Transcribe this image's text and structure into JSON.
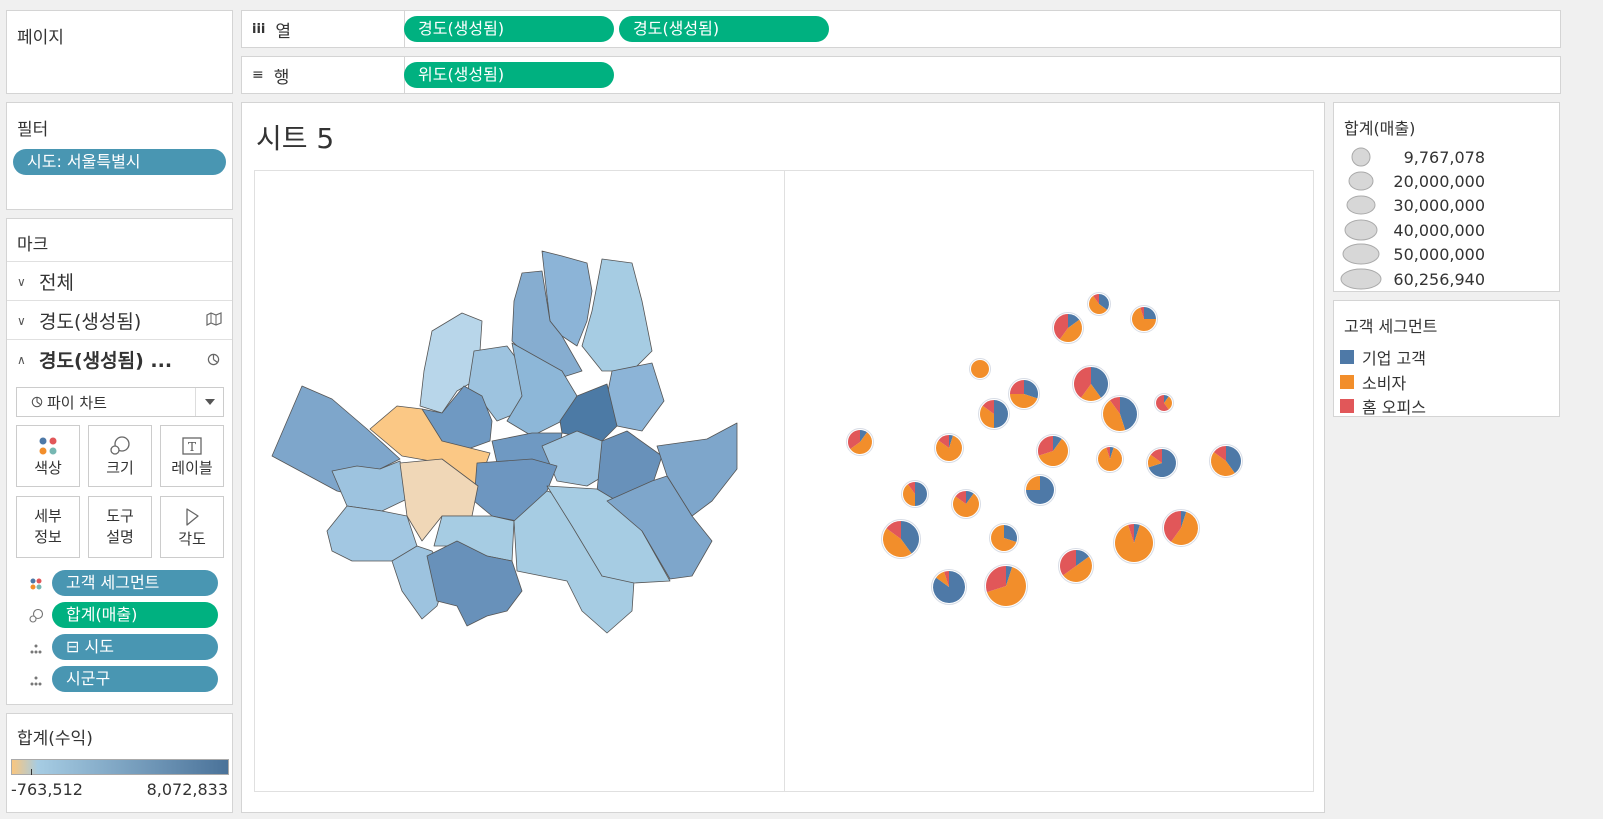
{
  "pages_card": {
    "title": "페이지"
  },
  "columns_shelf": {
    "icon": "iii",
    "label": "열",
    "pills": [
      "경도(생성됨)",
      "경도(생성됨)"
    ]
  },
  "rows_shelf": {
    "icon": "≡",
    "label": "행",
    "pills": [
      "위도(생성됨)"
    ]
  },
  "filters_card": {
    "title": "필터",
    "pills": [
      "시도: 서울특별시"
    ]
  },
  "marks_card": {
    "title": "마크",
    "layers": [
      {
        "label": "전체",
        "icon": ""
      },
      {
        "label": "경도(생성됨)",
        "icon": "map-icon"
      },
      {
        "label": "경도(생성됨) ...",
        "icon": "pie-icon"
      }
    ],
    "mark_type": "파이 차트",
    "buttons": {
      "color": "색상",
      "size": "크기",
      "label": "레이블",
      "detail": "세부\n정보",
      "tooltip": "도구\n설명",
      "angle": "각도"
    },
    "encodings": [
      {
        "icon": "color-icon",
        "label": "고객 세그먼트",
        "color": "#4996b2"
      },
      {
        "icon": "size-icon",
        "label": "합계(매출)",
        "color": "#00b180"
      },
      {
        "icon": "detail-icon",
        "label": "⊟ 시도",
        "color": "#4996b2"
      },
      {
        "icon": "detail-icon",
        "label": "시군구",
        "color": "#4996b2"
      }
    ]
  },
  "profit_legend": {
    "title": "합계(수익)",
    "min": "-763,512",
    "max": "8,072,833",
    "colors": [
      "#f9c67f",
      "#a6cce3",
      "#4a7299"
    ]
  },
  "sheet": {
    "title": "시트 5"
  },
  "size_legend": {
    "title": "합계(매출)",
    "items": [
      "9,767,078",
      "20,000,000",
      "30,000,000",
      "40,000,000",
      "50,000,000",
      "60,256,940"
    ]
  },
  "segment_legend": {
    "title": "고객 세그먼트",
    "items": [
      {
        "label": "기업 고객",
        "color": "#4e79a7"
      },
      {
        "label": "소비자",
        "color": "#f28e2b"
      },
      {
        "label": "홈 오피스",
        "color": "#e15759"
      }
    ]
  }
}
